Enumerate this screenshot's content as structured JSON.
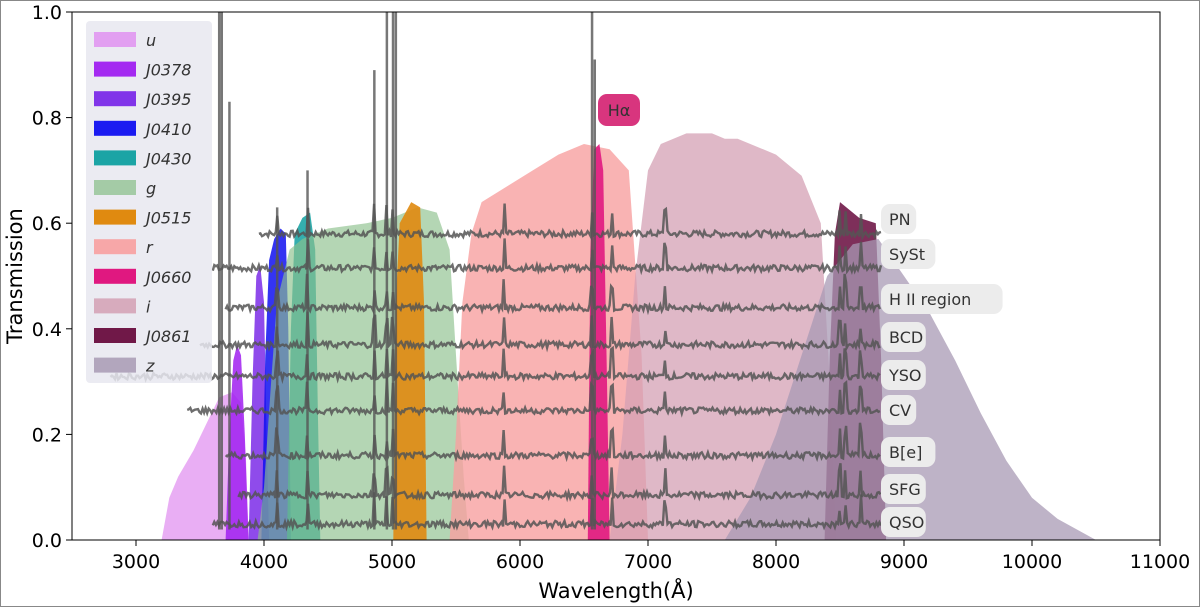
{
  "chart_data": {
    "type": "area",
    "title": "",
    "xlabel": "Wavelength(Å)",
    "ylabel": "Transmission",
    "xlim": [
      2500,
      11000
    ],
    "ylim": [
      0.0,
      1.0
    ],
    "xticks": [
      3000,
      4000,
      5000,
      6000,
      7000,
      8000,
      9000,
      10000,
      11000
    ],
    "yticks": [
      0.0,
      0.2,
      0.4,
      0.6,
      0.8,
      1.0
    ],
    "ytick_labels": [
      "0.0",
      "0.2",
      "0.4",
      "0.6",
      "0.8",
      "1.0"
    ],
    "grid": false,
    "legend_position": "upper-left",
    "filters": [
      {
        "name": "u",
        "italic": true,
        "color": "#e08cf0",
        "opacity": 0.7,
        "points": [
          [
            3200,
            0
          ],
          [
            3260,
            0.08
          ],
          [
            3330,
            0.12
          ],
          [
            3450,
            0.17
          ],
          [
            3550,
            0.22
          ],
          [
            3650,
            0.27
          ],
          [
            3750,
            0.28
          ],
          [
            3820,
            0.26
          ],
          [
            3860,
            0.15
          ],
          [
            3880,
            0
          ]
        ]
      },
      {
        "name": "J0378",
        "color": "#a020f0",
        "opacity": 0.85,
        "points": [
          [
            3700,
            0
          ],
          [
            3730,
            0.2
          ],
          [
            3760,
            0.34
          ],
          [
            3790,
            0.37
          ],
          [
            3820,
            0.35
          ],
          [
            3850,
            0.2
          ],
          [
            3880,
            0
          ]
        ]
      },
      {
        "name": "J0395",
        "color": "#7b2be8",
        "opacity": 0.85,
        "points": [
          [
            3880,
            0
          ],
          [
            3910,
            0.3
          ],
          [
            3940,
            0.5
          ],
          [
            3970,
            0.52
          ],
          [
            4000,
            0.45
          ],
          [
            4020,
            0.2
          ],
          [
            4040,
            0
          ]
        ]
      },
      {
        "name": "J0410",
        "color": "#1010f0",
        "opacity": 0.85,
        "points": [
          [
            3980,
            0
          ],
          [
            4010,
            0.35
          ],
          [
            4040,
            0.53
          ],
          [
            4080,
            0.57
          ],
          [
            4130,
            0.59
          ],
          [
            4170,
            0.58
          ],
          [
            4190,
            0.4
          ],
          [
            4210,
            0
          ]
        ]
      },
      {
        "name": "J0430",
        "color": "#10a0a0",
        "opacity": 0.85,
        "points": [
          [
            4180,
            0
          ],
          [
            4210,
            0.4
          ],
          [
            4240,
            0.58
          ],
          [
            4300,
            0.61
          ],
          [
            4360,
            0.62
          ],
          [
            4400,
            0.55
          ],
          [
            4420,
            0.25
          ],
          [
            4440,
            0
          ]
        ]
      },
      {
        "name": "g",
        "italic": true,
        "color": "#8cc08c",
        "opacity": 0.65,
        "points": [
          [
            3950,
            0
          ],
          [
            4000,
            0.1
          ],
          [
            4050,
            0.28
          ],
          [
            4100,
            0.45
          ],
          [
            4200,
            0.55
          ],
          [
            4300,
            0.57
          ],
          [
            4500,
            0.59
          ],
          [
            4800,
            0.6
          ],
          [
            5000,
            0.61
          ],
          [
            5200,
            0.63
          ],
          [
            5350,
            0.62
          ],
          [
            5450,
            0.55
          ],
          [
            5500,
            0.35
          ],
          [
            5560,
            0.12
          ],
          [
            5600,
            0
          ]
        ]
      },
      {
        "name": "J0515",
        "color": "#e08a10",
        "opacity": 0.9,
        "points": [
          [
            5010,
            0
          ],
          [
            5030,
            0.45
          ],
          [
            5060,
            0.6
          ],
          [
            5150,
            0.64
          ],
          [
            5220,
            0.63
          ],
          [
            5250,
            0.45
          ],
          [
            5270,
            0
          ]
        ]
      },
      {
        "name": "r",
        "italic": true,
        "color": "#f8a0a0",
        "opacity": 0.8,
        "points": [
          [
            5450,
            0
          ],
          [
            5500,
            0.2
          ],
          [
            5550,
            0.45
          ],
          [
            5620,
            0.58
          ],
          [
            5700,
            0.64
          ],
          [
            5900,
            0.67
          ],
          [
            6100,
            0.7
          ],
          [
            6300,
            0.73
          ],
          [
            6500,
            0.75
          ],
          [
            6700,
            0.74
          ],
          [
            6850,
            0.7
          ],
          [
            6950,
            0.35
          ],
          [
            7000,
            0
          ]
        ]
      },
      {
        "name": "J0660",
        "color": "#e01880",
        "opacity": 0.9,
        "points": [
          [
            6530,
            0
          ],
          [
            6550,
            0.55
          ],
          [
            6580,
            0.74
          ],
          [
            6620,
            0.75
          ],
          [
            6650,
            0.7
          ],
          [
            6680,
            0.3
          ],
          [
            6700,
            0
          ]
        ]
      },
      {
        "name": "i",
        "italic": true,
        "color": "#d4a0b4",
        "opacity": 0.75,
        "points": [
          [
            6700,
            0
          ],
          [
            6800,
            0.2
          ],
          [
            6900,
            0.5
          ],
          [
            7000,
            0.7
          ],
          [
            7100,
            0.75
          ],
          [
            7300,
            0.77
          ],
          [
            7500,
            0.77
          ],
          [
            7600,
            0.76
          ],
          [
            7700,
            0.76
          ],
          [
            8000,
            0.73
          ],
          [
            8200,
            0.69
          ],
          [
            8350,
            0.6
          ],
          [
            8420,
            0.3
          ],
          [
            8470,
            0
          ]
        ]
      },
      {
        "name": "J0861",
        "color": "#701848",
        "opacity": 0.9,
        "points": [
          [
            8380,
            0
          ],
          [
            8420,
            0.35
          ],
          [
            8460,
            0.58
          ],
          [
            8500,
            0.64
          ],
          [
            8650,
            0.61
          ],
          [
            8780,
            0.6
          ],
          [
            8820,
            0.35
          ],
          [
            8860,
            0
          ]
        ]
      },
      {
        "name": "z",
        "italic": true,
        "color": "#a89ab4",
        "opacity": 0.75,
        "points": [
          [
            7600,
            0
          ],
          [
            7800,
            0.08
          ],
          [
            8000,
            0.2
          ],
          [
            8200,
            0.35
          ],
          [
            8400,
            0.5
          ],
          [
            8600,
            0.56
          ],
          [
            8800,
            0.57
          ],
          [
            9000,
            0.5
          ],
          [
            9200,
            0.43
          ],
          [
            9400,
            0.34
          ],
          [
            9600,
            0.24
          ],
          [
            9800,
            0.15
          ],
          [
            10000,
            0.08
          ],
          [
            10200,
            0.04
          ],
          [
            10500,
            0
          ]
        ]
      }
    ],
    "objects": [
      {
        "name": "PN",
        "level": 0.58,
        "x_start": 3960
      },
      {
        "name": "SySt",
        "level": 0.515,
        "x_start": 3600
      },
      {
        "name": "H II region",
        "level": 0.44,
        "x_start": 3700
      },
      {
        "name": "BCD",
        "level": 0.37,
        "x_start": 3500
      },
      {
        "name": "YSO",
        "level": 0.31,
        "x_start": 2800
      },
      {
        "name": "CV",
        "level": 0.245,
        "x_start": 3400
      },
      {
        "name": "B[e]",
        "level": 0.16,
        "x_start": 3700
      },
      {
        "name": "SFG",
        "level": 0.085,
        "x_start": 3800
      },
      {
        "name": "QSO",
        "level": 0.03,
        "x_start": 3600
      }
    ],
    "halpha_label": "Hα",
    "halpha_color": "#d8357e",
    "spectrum_color": "#555555"
  }
}
